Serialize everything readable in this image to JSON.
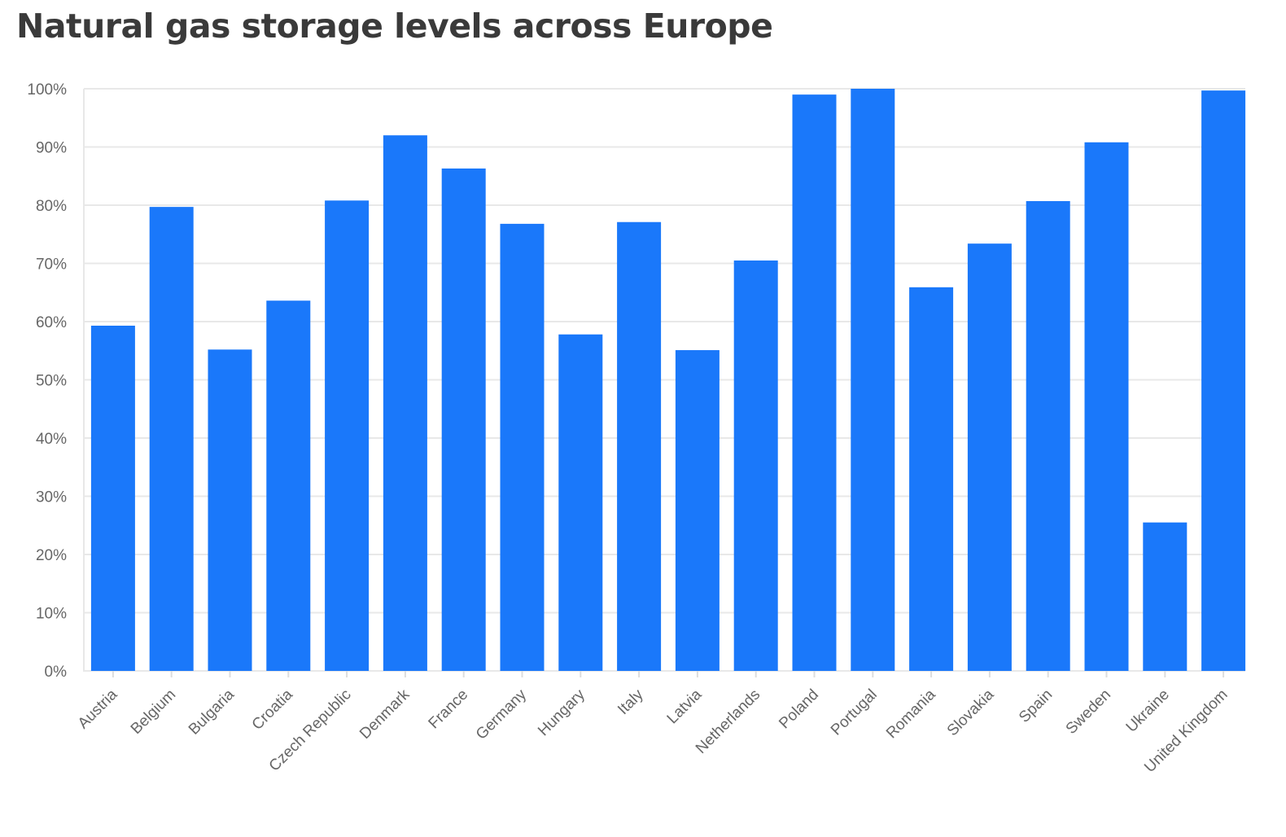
{
  "chart_data": {
    "type": "bar",
    "title": "Natural gas storage levels across Europe",
    "xlabel": "",
    "ylabel": "",
    "ylim": [
      0,
      100
    ],
    "y_ticks": [
      "0%",
      "10%",
      "20%",
      "30%",
      "40%",
      "50%",
      "60%",
      "70%",
      "80%",
      "90%",
      "100%"
    ],
    "grid": true,
    "bar_color": "#1a78fa",
    "categories": [
      "Austria",
      "Belgium",
      "Bulgaria",
      "Croatia",
      "Czech Republic",
      "Denmark",
      "France",
      "Germany",
      "Hungary",
      "Italy",
      "Latvia",
      "Netherlands",
      "Poland",
      "Portugal",
      "Romania",
      "Slovakia",
      "Spain",
      "Sweden",
      "Ukraine",
      "United Kingdom"
    ],
    "values": [
      59.3,
      79.7,
      55.2,
      63.6,
      80.8,
      92.0,
      86.3,
      76.8,
      57.8,
      77.1,
      55.1,
      70.5,
      99.0,
      100.0,
      65.9,
      73.4,
      80.7,
      90.8,
      25.5,
      99.7
    ]
  }
}
